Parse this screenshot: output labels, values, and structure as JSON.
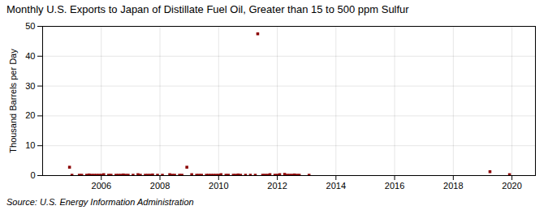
{
  "chart_data": {
    "type": "scatter",
    "title": "Monthly U.S. Exports to Japan of Distillate Fuel Oil, Greater than 15 to 500 ppm Sulfur",
    "ylabel": "Thousand Barrels per Day",
    "annotation": "Source: U.S. Energy Information Administration",
    "color": "#8b0000",
    "marker": "square",
    "grid": true,
    "xlim": [
      2004.0,
      2020.8
    ],
    "xticks": [
      2006,
      2008,
      2010,
      2012,
      2014,
      2016,
      2018,
      2020
    ],
    "ylim": [
      0,
      50
    ],
    "yticks": [
      0,
      10,
      20,
      30,
      40,
      50
    ],
    "x": [
      2004.917,
      2005.0,
      2005.25,
      2005.333,
      2005.5,
      2005.583,
      2005.667,
      2005.75,
      2005.833,
      2005.917,
      2006.0,
      2006.083,
      2006.25,
      2006.333,
      2006.5,
      2006.583,
      2006.667,
      2006.75,
      2006.833,
      2006.917,
      2007.083,
      2007.25,
      2007.333,
      2007.5,
      2007.583,
      2007.667,
      2007.75,
      2007.917,
      2008.083,
      2008.333,
      2008.417,
      2008.5,
      2008.667,
      2008.75,
      2008.917,
      2009.083,
      2009.25,
      2009.333,
      2009.417,
      2009.583,
      2009.667,
      2009.75,
      2009.833,
      2009.917,
      2010.0,
      2010.083,
      2010.25,
      2010.333,
      2010.5,
      2010.583,
      2010.667,
      2010.75,
      2010.917,
      2011.083,
      2011.25,
      2011.333,
      2011.5,
      2011.583,
      2011.667,
      2011.75,
      2011.917,
      2012.0,
      2012.083,
      2012.25,
      2012.333,
      2012.417,
      2012.5,
      2012.583,
      2012.667,
      2012.75,
      2013.083,
      2019.25,
      2019.917
    ],
    "values": [
      2.8,
      0.1,
      0.1,
      0.1,
      0.1,
      0.2,
      0.1,
      0.1,
      0.1,
      0.1,
      0.1,
      0.3,
      0.1,
      0.1,
      0.1,
      0.1,
      0.1,
      0.2,
      0.1,
      0.1,
      0.1,
      0.3,
      0.1,
      0.1,
      0.1,
      0.1,
      0.2,
      0.1,
      0.1,
      0.3,
      0.1,
      0.1,
      0.1,
      0.1,
      2.8,
      0.3,
      0.1,
      0.1,
      0.1,
      0.1,
      0.1,
      0.1,
      0.1,
      0.1,
      0.1,
      0.3,
      0.1,
      0.1,
      0.1,
      0.1,
      0.2,
      0.1,
      0.1,
      0.1,
      0.1,
      47.5,
      0.1,
      0.1,
      0.1,
      0.3,
      0.1,
      0.1,
      0.3,
      0.4,
      0.1,
      0.1,
      0.1,
      0.2,
      0.1,
      0.1,
      0.1,
      1.3,
      0.3
    ]
  }
}
